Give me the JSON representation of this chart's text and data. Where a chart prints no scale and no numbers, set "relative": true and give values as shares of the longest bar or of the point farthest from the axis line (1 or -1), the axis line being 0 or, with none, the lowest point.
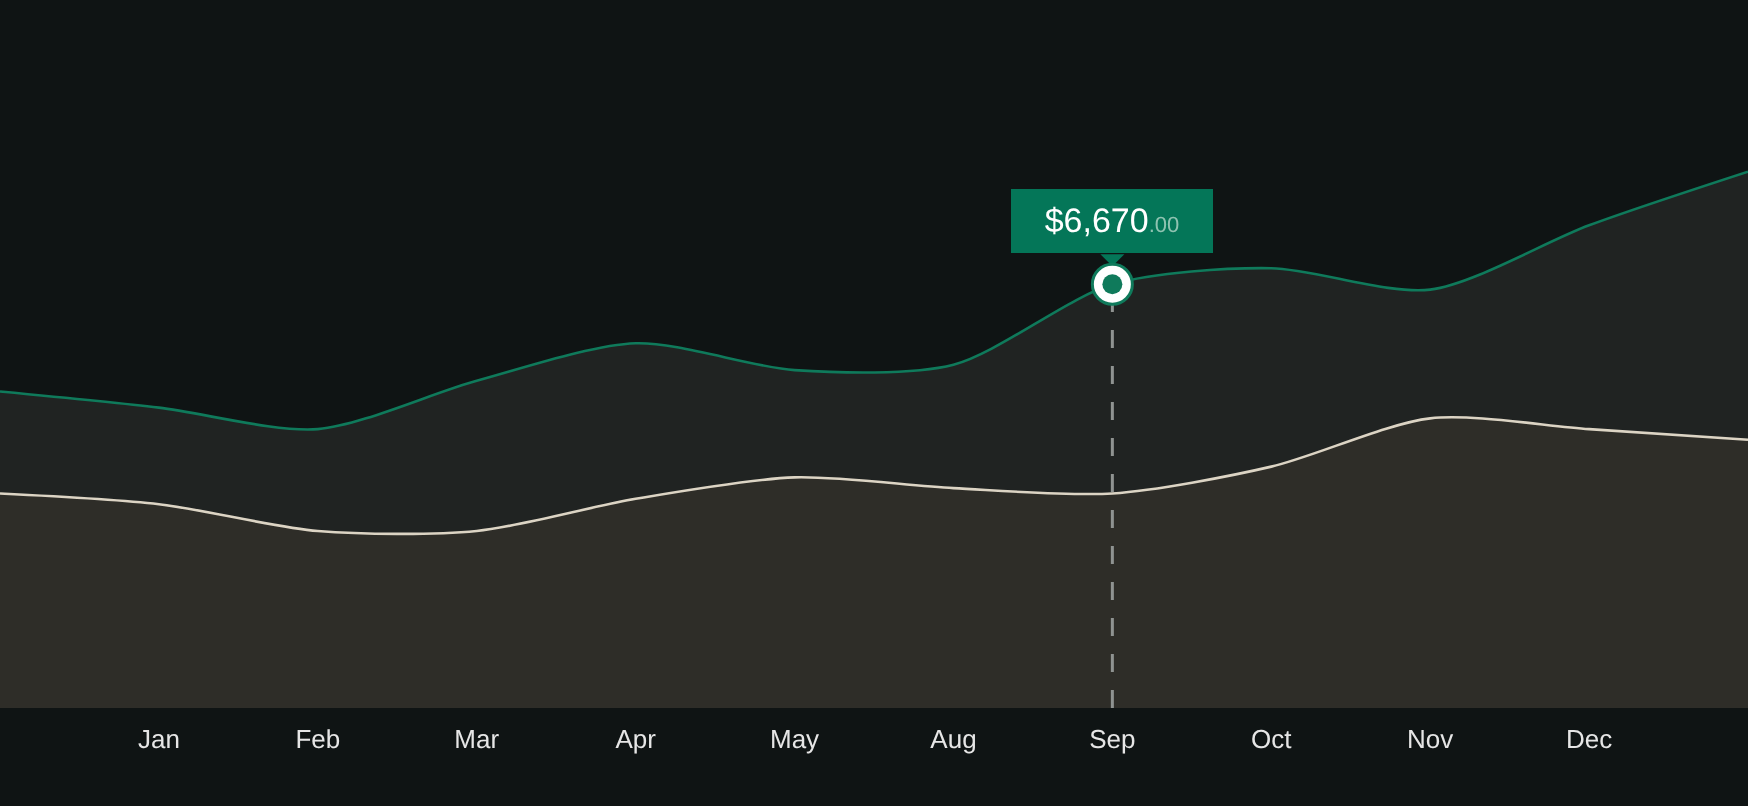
{
  "chart_data": {
    "type": "area",
    "relative": true,
    "categories": [
      null,
      "Jan",
      "Feb",
      "Mar",
      "Apr",
      "May",
      "Aug",
      "Sep",
      "Oct",
      "Nov",
      "Dec",
      null
    ],
    "series": [
      {
        "color": "#0f7a5b",
        "values": [
          0.59,
          0.56,
          0.52,
          0.61,
          0.68,
          0.63,
          0.64,
          0.79,
          0.82,
          0.78,
          0.9,
          1.0
        ]
      },
      {
        "color": "#dcd4c4",
        "values": [
          0.4,
          0.38,
          0.33,
          0.33,
          0.39,
          0.43,
          0.41,
          0.4,
          0.45,
          0.54,
          0.52,
          0.5
        ]
      }
    ],
    "annotations": [
      {
        "text": "$6,670.00",
        "x": "Sep",
        "y": 0.79
      }
    ],
    "ref_lines": [
      {
        "axis": "x",
        "value": "Sep",
        "color": "#8f9391",
        "line_style": "dashed"
      }
    ],
    "tick_labels": "x"
  }
}
